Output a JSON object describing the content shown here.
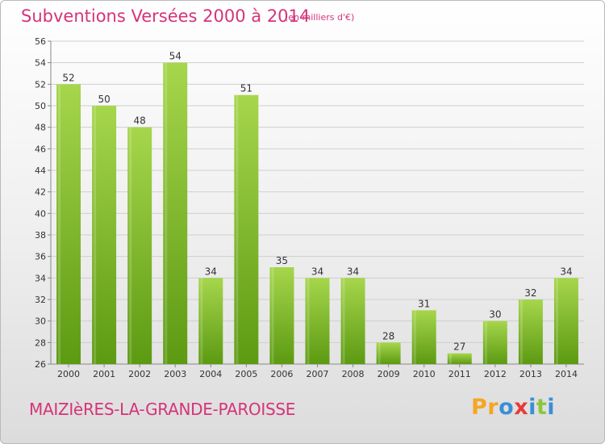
{
  "header": {
    "title": "Subventions Versées 2000 à 2014",
    "unit": "(en milliers d'€)"
  },
  "footer": {
    "commune": "MAIZIèRES-LA-GRANDE-PAROISSE",
    "logo": [
      "P",
      "r",
      "o",
      "x",
      "i",
      "t",
      "i"
    ]
  },
  "colors": {
    "title": "#d6337a",
    "bar_light": "#a6d64c",
    "bar_dark": "#5c9a12",
    "logo": [
      "#f5a623",
      "#f5a623",
      "#3a8fd6",
      "#e83a3a",
      "#3a8fd6",
      "#8cc63f",
      "#3a8fd6"
    ]
  },
  "chart_data": {
    "type": "bar",
    "categories": [
      "2000",
      "2001",
      "2002",
      "2003",
      "2004",
      "2005",
      "2006",
      "2007",
      "2008",
      "2009",
      "2010",
      "2011",
      "2012",
      "2013",
      "2014"
    ],
    "values": [
      52,
      50,
      48,
      54,
      34,
      51,
      35,
      34,
      34,
      28,
      31,
      27,
      30,
      32,
      34
    ],
    "title": "Subventions Versées 2000 à 2014",
    "xlabel": "",
    "ylabel": "",
    "ylim": [
      26,
      56
    ],
    "yticks": [
      26,
      28,
      30,
      32,
      34,
      36,
      38,
      40,
      42,
      44,
      46,
      48,
      50,
      52,
      54,
      56
    ],
    "grid": true,
    "data_labels": true
  }
}
